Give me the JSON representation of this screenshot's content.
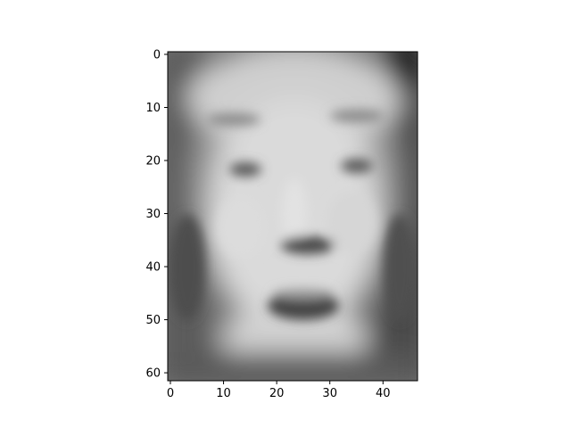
{
  "chart_data": {
    "type": "heatmap",
    "colormap": "gray",
    "x_ticks": [
      "0",
      "10",
      "20",
      "30",
      "40"
    ],
    "y_ticks": [
      "0",
      "10",
      "20",
      "30",
      "40",
      "50",
      "60"
    ],
    "xlim": [
      -0.5,
      46.5
    ],
    "ylim": [
      61.5,
      -0.5
    ],
    "grid_cols": 47,
    "grid_rows": 62,
    "colors": {
      "axis": "#000000",
      "background": "#ffffff"
    }
  }
}
